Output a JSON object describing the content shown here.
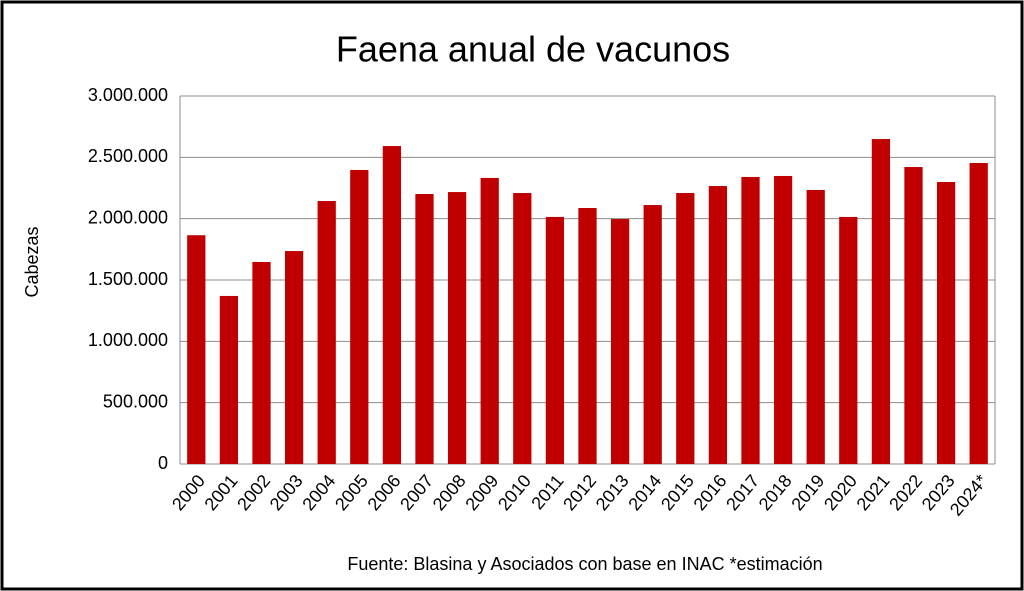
{
  "chart_data": {
    "type": "bar",
    "title": "Faena anual de vacunos",
    "y_label": "Cabezas",
    "source": "Fuente:  Blasina y Asociados con base en INAC *estimación",
    "categories": [
      "2000",
      "2001",
      "2002",
      "2003",
      "2004",
      "2005",
      "2006",
      "2007",
      "2008",
      "2009",
      "2010",
      "2011",
      "2012",
      "2013",
      "2014",
      "2015",
      "2016",
      "2017",
      "2018",
      "2019",
      "2020",
      "2021",
      "2022",
      "2023",
      "2024*"
    ],
    "values": [
      1865000,
      1370000,
      1647000,
      1736000,
      2144000,
      2397000,
      2592000,
      2201000,
      2217000,
      2332000,
      2209000,
      2014000,
      2087000,
      1997000,
      2111000,
      2209000,
      2266000,
      2340000,
      2348000,
      2234000,
      2014000,
      2649000,
      2421000,
      2299000,
      2454000
    ],
    "color": "#c00000",
    "ylim": [
      0,
      3000000
    ],
    "yticks": [
      0,
      {
        "value": 500000,
        "label": "500.000"
      },
      {
        "value": 1000000,
        "label": "1.000.000"
      },
      {
        "value": 1500000,
        "label": "1.500.000"
      },
      {
        "value": 2000000,
        "label": "2.000.000"
      },
      {
        "value": 2500000,
        "label": "2.500.000"
      },
      {
        "value": 3000000,
        "label": "3.000.000"
      }
    ],
    "grid": true
  }
}
